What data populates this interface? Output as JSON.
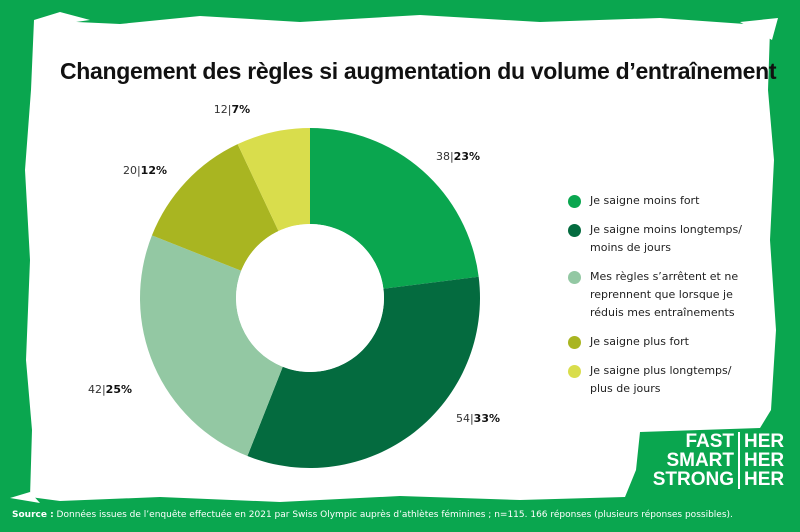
{
  "title": "Changement des règles si augmentation du volume d’entraînement",
  "chart_data": {
    "type": "pie",
    "donut": true,
    "slices": [
      {
        "label": "Je saigne moins fort",
        "count": "38",
        "percent": "23%",
        "value": 23,
        "color": "#0aa64f"
      },
      {
        "label": "Je saigne moins longtemps/\nmoins de jours",
        "count": "54",
        "percent": "33%",
        "value": 33,
        "color": "#046b3f"
      },
      {
        "label": "Mes règles s’arrêtent et ne\nreprennent que lorsque je\nréduis mes entraînements",
        "count": "42",
        "percent": "25%",
        "value": 25,
        "color": "#93c8a3"
      },
      {
        "label": "Je saigne plus fort",
        "count": "20",
        "percent": "12%",
        "value": 12,
        "color": "#a9b521"
      },
      {
        "label": "Je saigne plus longtemps/\nplus de jours",
        "count": "12",
        "percent": "7%",
        "value": 7,
        "color": "#d9dd4c"
      }
    ],
    "legend_position": "right"
  },
  "logo": {
    "left": [
      "FAST",
      "SMART",
      "STRONG"
    ],
    "right": [
      "HER",
      "HER",
      "HER"
    ]
  },
  "source": {
    "label": "Source :",
    "text": " Données issues de l’enquête effectuée en 2021 par Swiss Olympic auprès d’athlètes féminines ; n=115. 166 réponses (plusieurs réponses possibles)."
  }
}
